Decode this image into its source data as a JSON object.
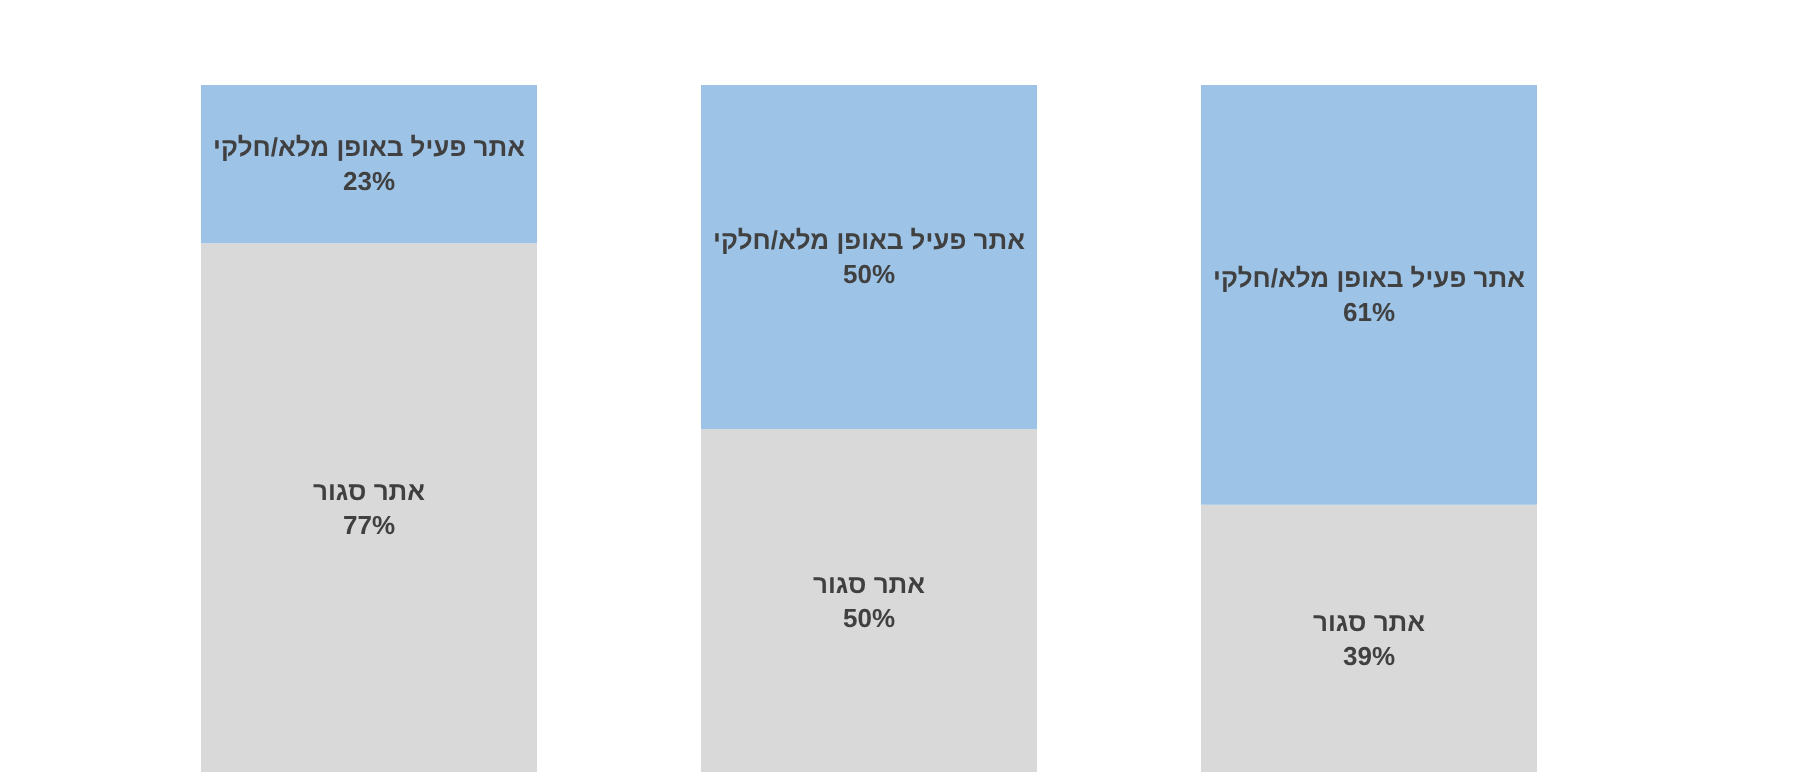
{
  "chart_data": {
    "type": "bar",
    "stacked": true,
    "categories": [
      null,
      null,
      null
    ],
    "series": [
      {
        "name": "אתר סגור",
        "color": "#d9d9d9",
        "values": [
          77,
          50,
          39
        ],
        "value_labels": [
          "77%",
          "50%",
          "39%"
        ]
      },
      {
        "name": "אתר פעיל באופן מלא/חלקי",
        "color": "#9dc3e6",
        "values": [
          23,
          50,
          61
        ],
        "value_labels": [
          "23%",
          "50%",
          "61%"
        ]
      }
    ]
  }
}
